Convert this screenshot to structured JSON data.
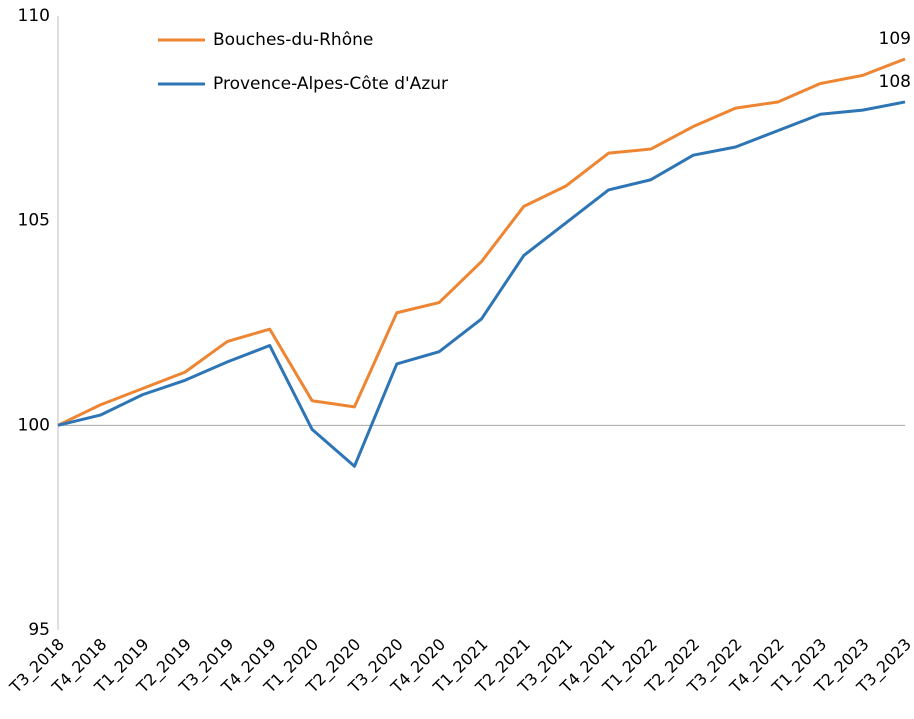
{
  "chart_data": {
    "type": "line",
    "categories": [
      "T3_2018",
      "T4_2018",
      "T1_2019",
      "T2_2019",
      "T3_2019",
      "T4_2019",
      "T1_2020",
      "T2_2020",
      "T3_2020",
      "T4_2020",
      "T1_2021",
      "T2_2021",
      "T3_2021",
      "T4_2021",
      "T1_2022",
      "T2_2022",
      "T3_2022",
      "T4_2022",
      "T1_2023",
      "T2_2023",
      "T3_2023"
    ],
    "series": [
      {
        "name": "Bouches-du-Rhône",
        "color": "#ee8533",
        "values": [
          100,
          100.5,
          100.9,
          101.3,
          102.05,
          102.35,
          100.6,
          100.45,
          102.75,
          103.0,
          104.0,
          105.35,
          105.85,
          106.65,
          106.75,
          107.3,
          107.75,
          107.9,
          108.35,
          108.55,
          108.95
        ],
        "value_labels": [
          null,
          null,
          null,
          null,
          null,
          null,
          null,
          null,
          null,
          null,
          null,
          null,
          null,
          null,
          null,
          null,
          null,
          null,
          null,
          null,
          "109"
        ]
      },
      {
        "name": "Provence-Alpes-Côte d'Azur",
        "color": "#2e75b6",
        "values": [
          100,
          100.25,
          100.75,
          101.1,
          101.55,
          101.95,
          99.9,
          99.0,
          101.5,
          101.8,
          102.6,
          104.15,
          104.95,
          105.75,
          106.0,
          106.6,
          106.8,
          107.2,
          107.6,
          107.7,
          107.9
        ],
        "value_labels": [
          null,
          null,
          null,
          null,
          null,
          null,
          null,
          null,
          null,
          null,
          null,
          null,
          null,
          null,
          null,
          null,
          null,
          null,
          null,
          null,
          "108"
        ]
      }
    ],
    "ylim": [
      95,
      110
    ],
    "yticks": [
      95,
      100,
      105,
      110
    ],
    "reference_line": 100,
    "grid": false,
    "legend": "top-left"
  }
}
